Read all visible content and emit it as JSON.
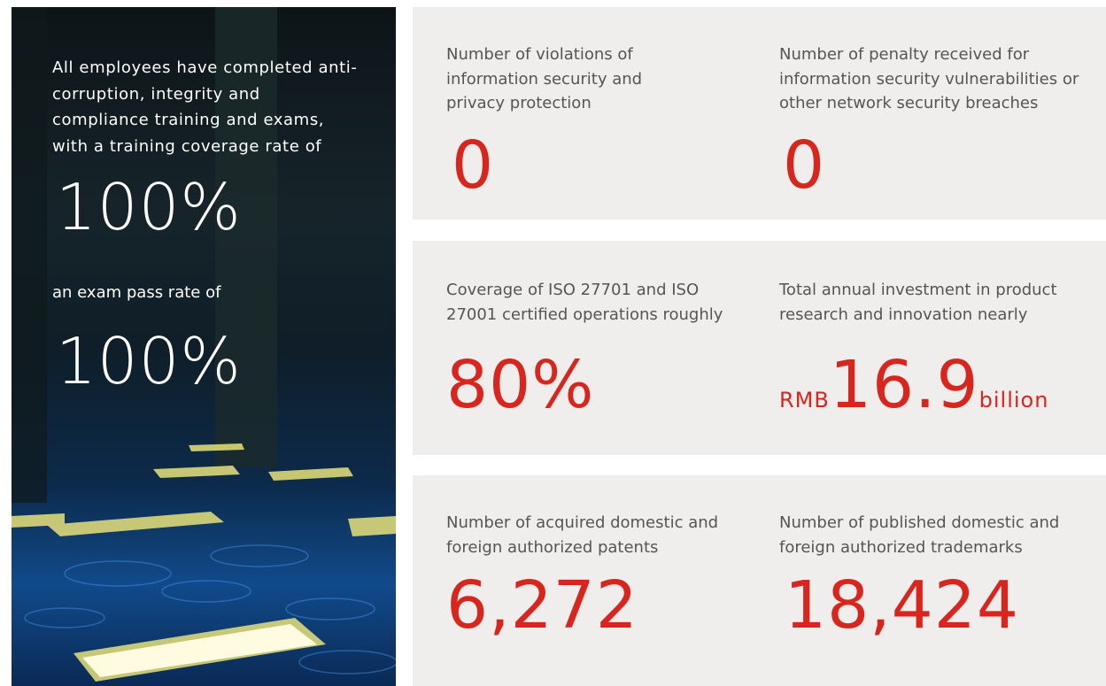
{
  "hero": {
    "lead": "All employees have completed anti-corruption, integrity and compliance training and exams, with a training coverage rate of",
    "coverage_rate": "100%",
    "pass_label": "an exam pass rate of",
    "pass_rate": "100%"
  },
  "cards": [
    {
      "label": "Number of violations of information security and privacy protection",
      "value": "0"
    },
    {
      "label": "Number of penalty received for information security vulnerabilities or other network security breaches",
      "value": "0"
    },
    {
      "label": "Coverage of ISO 27701 and ISO 27001 certified operations roughly",
      "value": "80%"
    },
    {
      "label": "Total annual investment in product research and innovation nearly",
      "prefix": "RMB",
      "value": "16.9",
      "suffix": "billion"
    },
    {
      "label": "Number of acquired domestic and foreign authorized patents",
      "value": "6,272"
    },
    {
      "label": "Number of published domestic and foreign authorized trademarks",
      "value": "18,424"
    }
  ]
}
